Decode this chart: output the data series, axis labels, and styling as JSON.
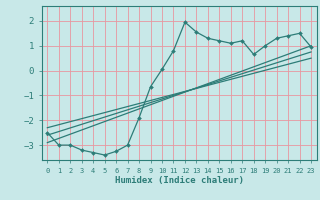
{
  "title": "",
  "xlabel": "Humidex (Indice chaleur)",
  "bg_color": "#c8e8e8",
  "grid_color": "#e896a0",
  "line_color": "#2d7d78",
  "xlim": [
    -0.5,
    23.5
  ],
  "ylim": [
    -3.6,
    2.6
  ],
  "xticks": [
    0,
    1,
    2,
    3,
    4,
    5,
    6,
    7,
    8,
    9,
    10,
    11,
    12,
    13,
    14,
    15,
    16,
    17,
    18,
    19,
    20,
    21,
    22,
    23
  ],
  "yticks": [
    -3,
    -2,
    -1,
    0,
    1,
    2
  ],
  "curve_x": [
    0,
    1,
    2,
    3,
    4,
    5,
    6,
    7,
    8,
    9,
    10,
    11,
    12,
    13,
    14,
    15,
    16,
    17,
    18,
    19,
    20,
    21,
    22,
    23
  ],
  "curve_y": [
    -2.5,
    -3.0,
    -3.0,
    -3.2,
    -3.3,
    -3.4,
    -3.25,
    -3.0,
    -1.9,
    -0.65,
    0.05,
    0.8,
    1.95,
    1.55,
    1.3,
    1.2,
    1.1,
    1.2,
    0.65,
    1.0,
    1.3,
    1.4,
    1.5,
    0.95
  ],
  "line1_x": [
    0,
    23
  ],
  "line1_y": [
    -2.6,
    0.75
  ],
  "line2_x": [
    0,
    23
  ],
  "line2_y": [
    -2.9,
    1.0
  ],
  "line3_x": [
    0,
    23
  ],
  "line3_y": [
    -2.3,
    0.5
  ]
}
